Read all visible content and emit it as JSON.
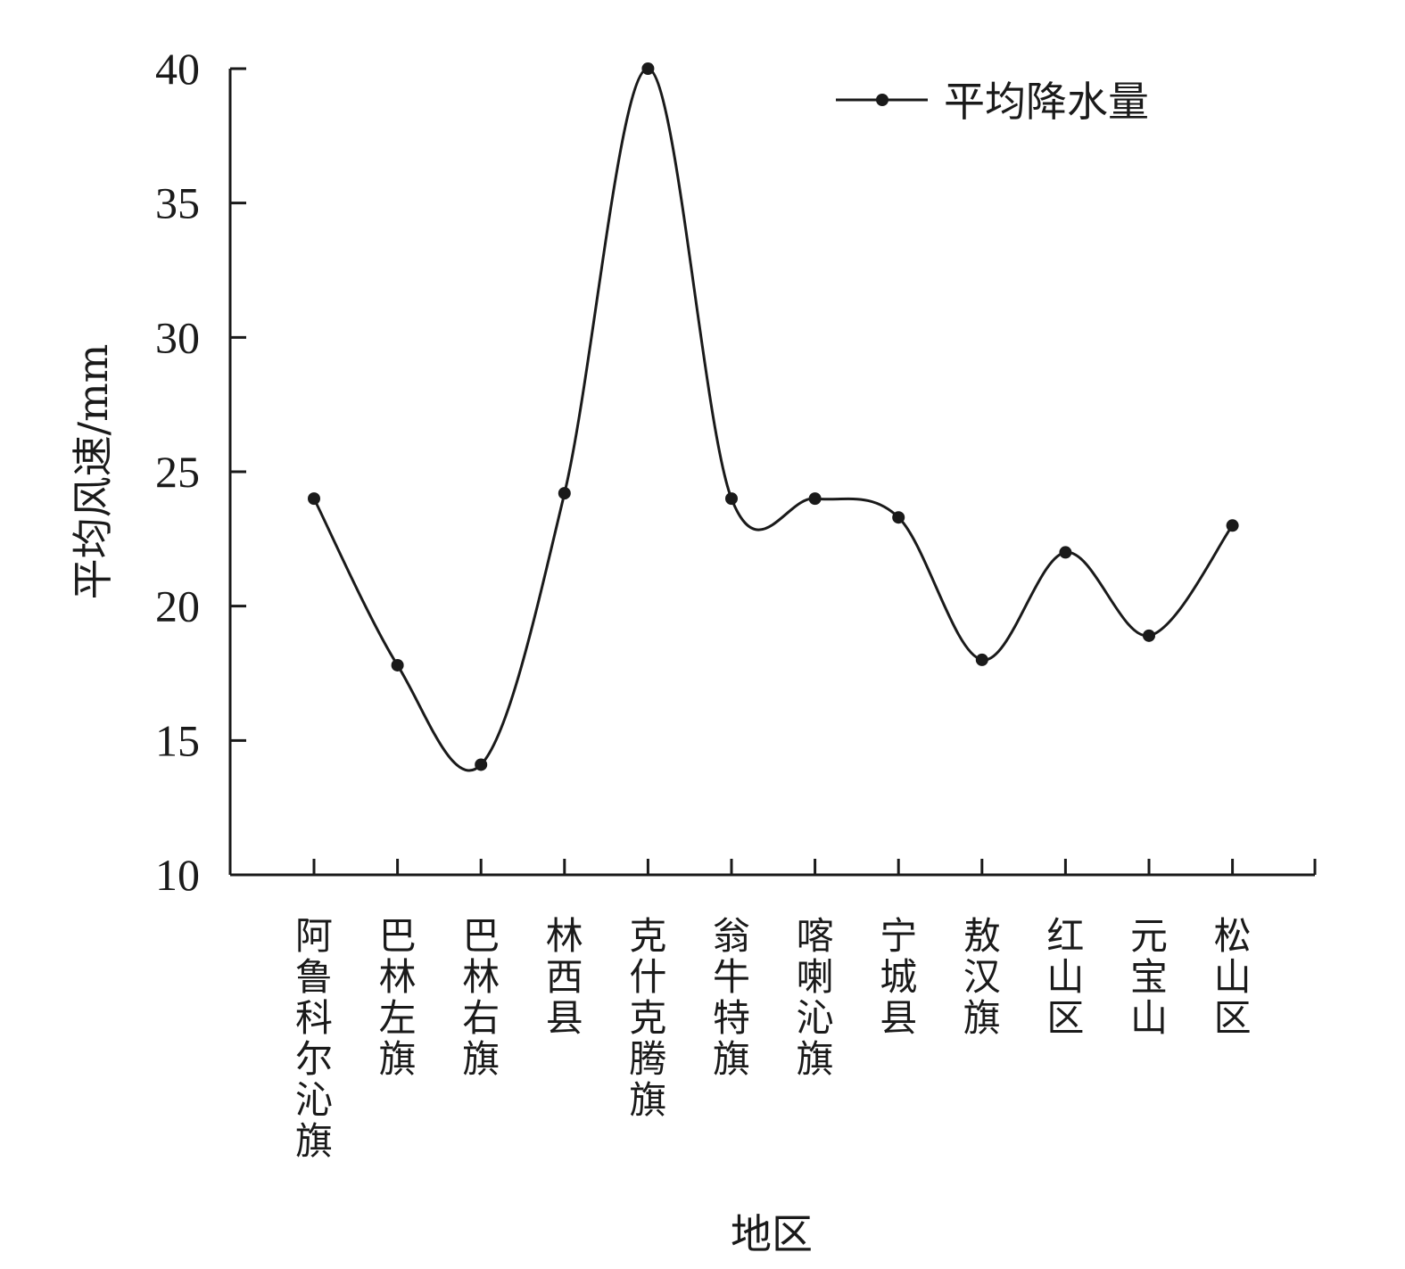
{
  "chart_data": {
    "type": "line",
    "smooth": true,
    "xlabel": "地区",
    "ylabel": "平均风速/mm",
    "ylim": [
      10,
      40
    ],
    "yticks": [
      10,
      15,
      20,
      25,
      30,
      35,
      40
    ],
    "ytick_labels": [
      "10",
      "15",
      "20",
      "25",
      "30",
      "35",
      "40"
    ],
    "grid": false,
    "legend_position": "top-right",
    "categories": [
      "阿鲁科尔沁旗",
      "巴林左旗",
      "巴林右旗",
      "林西县",
      "克什克腾旗",
      "翁牛特旗",
      "喀喇沁旗",
      "宁城县",
      "敖汉旗",
      "红山区",
      "元宝山",
      "松山区"
    ],
    "series": [
      {
        "name": "平均降水量",
        "color": "#1a1a1a",
        "marker": "circle",
        "values": [
          24.0,
          17.8,
          14.1,
          24.2,
          40.0,
          24.0,
          24.0,
          23.3,
          18.0,
          22.0,
          18.9,
          23.0
        ]
      }
    ]
  }
}
